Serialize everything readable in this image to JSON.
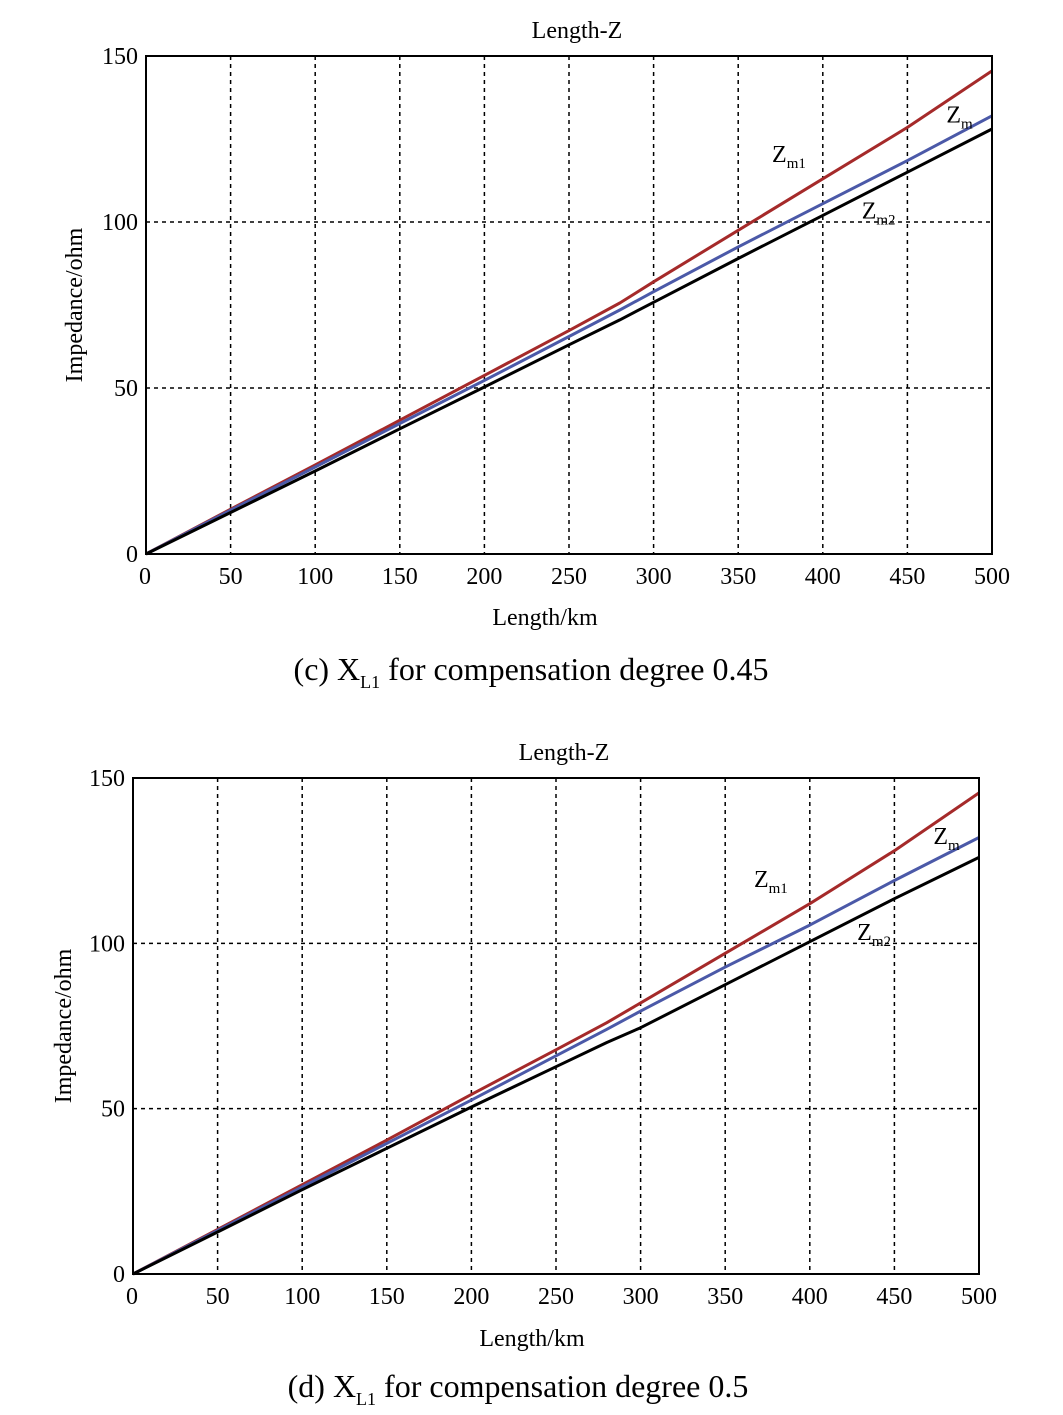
{
  "chart_data": [
    {
      "type": "line",
      "title": "Length-Z",
      "xlabel": "Length/km",
      "ylabel": "Impedance/ohm",
      "caption": {
        "prefix": "(c) X",
        "sub": "L1",
        "suffix": " for compensation degree 0.45"
      },
      "xlim": [
        0,
        500
      ],
      "ylim": [
        0,
        150
      ],
      "xticks": [
        0,
        50,
        100,
        150,
        200,
        250,
        300,
        350,
        400,
        450,
        500
      ],
      "yticks": [
        0,
        50,
        100,
        150
      ],
      "xtick_labels": [
        "0",
        "50",
        "100",
        "150",
        "200",
        "250",
        "300",
        "350",
        "400",
        "450",
        "500"
      ],
      "ytick_labels": [
        "0",
        "50",
        "100",
        "150"
      ],
      "grid": true,
      "x": [
        0,
        50,
        100,
        150,
        200,
        250,
        280,
        300,
        350,
        400,
        450,
        500
      ],
      "series": [
        {
          "name": "Zm1",
          "color": "#a52a2a",
          "values": [
            0,
            13.5,
            26.8,
            40.3,
            53.8,
            67.3,
            75.6,
            82,
            97.5,
            113,
            128.5,
            145.5
          ]
        },
        {
          "name": "Zm",
          "color": "#4b59a8",
          "values": [
            0,
            13.2,
            26.2,
            39.3,
            52.3,
            65.5,
            73.5,
            79,
            92.5,
            105.5,
            118.5,
            132
          ]
        },
        {
          "name": "Zm2",
          "color": "#000000",
          "values": [
            0,
            12.5,
            25,
            37.7,
            50.3,
            63,
            70.5,
            75.8,
            89,
            102,
            115,
            128
          ]
        }
      ],
      "annotations": [
        {
          "main": "Z",
          "sub": "m1",
          "x": 370,
          "y": 118
        },
        {
          "main": "Z",
          "sub": "m",
          "x": 473,
          "y": 130
        },
        {
          "main": "Z",
          "sub": "m2",
          "x": 423,
          "y": 101
        }
      ]
    },
    {
      "type": "line",
      "title": "Length-Z",
      "xlabel": "Length/km",
      "ylabel": "Impedance/ohm",
      "caption": {
        "prefix": "(d) X",
        "sub": "L1",
        "suffix": " for compensation degree 0.5"
      },
      "xlim": [
        0,
        500
      ],
      "ylim": [
        0,
        150
      ],
      "xticks": [
        0,
        50,
        100,
        150,
        200,
        250,
        300,
        350,
        400,
        450,
        500
      ],
      "yticks": [
        0,
        50,
        100,
        150
      ],
      "xtick_labels": [
        "0",
        "50",
        "100",
        "150",
        "200",
        "250",
        "300",
        "350",
        "400",
        "450",
        "500"
      ],
      "ytick_labels": [
        "0",
        "50",
        "100",
        "150"
      ],
      "grid": true,
      "x": [
        0,
        50,
        100,
        150,
        200,
        250,
        280,
        300,
        350,
        400,
        450,
        500
      ],
      "series": [
        {
          "name": "Zm1",
          "color": "#a52a2a",
          "values": [
            0,
            13.5,
            27,
            40.5,
            54.3,
            67.8,
            76,
            82,
            97,
            112,
            128,
            145.5
          ]
        },
        {
          "name": "Zm",
          "color": "#4b59a8",
          "values": [
            0,
            13.2,
            26.3,
            39.5,
            52.6,
            66,
            74,
            79.5,
            92.8,
            105.5,
            119,
            132
          ]
        },
        {
          "name": "Zm2",
          "color": "#000000",
          "values": [
            0,
            12.7,
            25.5,
            38,
            50.5,
            62.7,
            70,
            74.5,
            87.5,
            100.5,
            113.5,
            126
          ]
        }
      ],
      "annotations": [
        {
          "main": "Z",
          "sub": "m1",
          "x": 367,
          "y": 117
        },
        {
          "main": "Z",
          "sub": "m",
          "x": 473,
          "y": 130
        },
        {
          "main": "Z",
          "sub": "m2",
          "x": 428,
          "y": 101
        }
      ]
    }
  ]
}
